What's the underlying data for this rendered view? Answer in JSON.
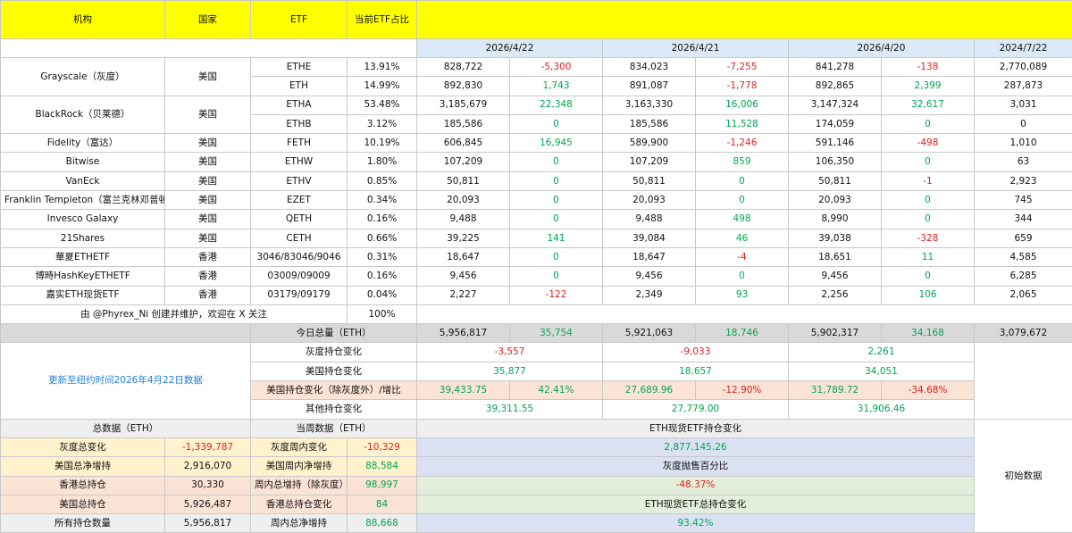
{
  "header": {
    "institution": "机构",
    "country": "国家",
    "etf": "ETF",
    "share": "当前ETF占比",
    "dates": [
      "2026/4/22",
      "2026/4/21",
      "2026/4/20",
      "2024/7/22"
    ]
  },
  "rows": [
    {
      "inst": "Grayscale（灰度）",
      "country": "美国",
      "etf": "ETHE",
      "share": "13.91%",
      "d1": "828,722",
      "c1": "-5,300",
      "d2": "834,023",
      "c2": "-7,255",
      "d3": "841,278",
      "c3": "-138",
      "d4": "2,770,089"
    },
    {
      "etf": "ETH",
      "share": "14.99%",
      "d1": "892,830",
      "c1": "1,743",
      "d2": "891,087",
      "c2": "-1,778",
      "d3": "892,865",
      "c3": "2,399",
      "d4": "287,873"
    },
    {
      "inst": "BlackRock（贝莱德）",
      "country": "美国",
      "etf": "ETHA",
      "share": "53.48%",
      "d1": "3,185,679",
      "c1": "22,348",
      "d2": "3,163,330",
      "c2": "16,006",
      "d3": "3,147,324",
      "c3": "32,617",
      "d4": "3,031"
    },
    {
      "etf": "ETHB",
      "share": "3.12%",
      "d1": "185,586",
      "c1": "0",
      "d2": "185,586",
      "c2": "11,528",
      "d3": "174,059",
      "c3": "0",
      "d4": "0"
    },
    {
      "inst": "Fidelity（富达）",
      "country": "美国",
      "etf": "FETH",
      "share": "10.19%",
      "d1": "606,845",
      "c1": "16,945",
      "d2": "589,900",
      "c2": "-1,246",
      "d3": "591,146",
      "c3": "-498",
      "d4": "1,010"
    },
    {
      "inst": "Bitwise",
      "country": "美国",
      "etf": "ETHW",
      "share": "1.80%",
      "d1": "107,209",
      "c1": "0",
      "d2": "107,209",
      "c2": "859",
      "d3": "106,350",
      "c3": "0",
      "d4": "63"
    },
    {
      "inst": "VanEck",
      "country": "美国",
      "etf": "ETHV",
      "share": "0.85%",
      "d1": "50,811",
      "c1": "0",
      "d2": "50,811",
      "c2": "0",
      "d3": "50,811",
      "c3": "-1",
      "d4": "2,923"
    },
    {
      "inst": "Franklin Templeton（富兰克林邓普顿）",
      "country": "美国",
      "etf": "EZET",
      "share": "0.34%",
      "d1": "20,093",
      "c1": "0",
      "d2": "20,093",
      "c2": "0",
      "d3": "20,093",
      "c3": "0",
      "d4": "745"
    },
    {
      "inst": "Invesco Galaxy",
      "country": "美国",
      "etf": "QETH",
      "share": "0.16%",
      "d1": "9,488",
      "c1": "0",
      "d2": "9,488",
      "c2": "498",
      "d3": "8,990",
      "c3": "0",
      "d4": "344"
    },
    {
      "inst": "21Shares",
      "country": "美国",
      "etf": "CETH",
      "share": "0.66%",
      "d1": "39,225",
      "c1": "141",
      "d2": "39,084",
      "c2": "46",
      "d3": "39,038",
      "c3": "-328",
      "d4": "659"
    },
    {
      "inst": "華夏ETHETF",
      "country": "香港",
      "etf": "3046/83046/9046",
      "share": "0.31%",
      "d1": "18,647",
      "c1": "0",
      "d2": "18,647",
      "c2": "-4",
      "d3": "18,651",
      "c3": "11",
      "d4": "4,585"
    },
    {
      "inst": "博時HashKeyETHETF",
      "country": "香港",
      "etf": "03009/09009",
      "share": "0.16%",
      "d1": "9,456",
      "c1": "0",
      "d2": "9,456",
      "c2": "0",
      "d3": "9,456",
      "c3": "0",
      "d4": "6,285"
    },
    {
      "inst": "嘉实ETH现货ETF",
      "country": "香港",
      "etf": "03179/09179",
      "share": "0.04%",
      "d1": "2,227",
      "c1": "-122",
      "d2": "2,349",
      "c2": "93",
      "d3": "2,256",
      "c3": "106",
      "d4": "2,065"
    }
  ],
  "credit": {
    "text": "由 @Phyrex_Ni 创建并维护，欢迎在 X 关注",
    "share": "100%"
  },
  "total": {
    "label": "今日总量（ETH）",
    "d1": "5,956,817",
    "c1": "35,754",
    "d2": "5,921,063",
    "c2": "18,746",
    "d3": "5,902,317",
    "c3": "34,168",
    "d4": "3,079,672"
  },
  "update_note": "更新至纽约时间2026年4月22日数据",
  "changes": {
    "gray_label": "灰度持仓变化",
    "gray": [
      "-3,557",
      "-9,033",
      "2,261"
    ],
    "us_label": "美国持仓变化",
    "us": [
      "35,877",
      "18,657",
      "34,051"
    ],
    "usx_label": "美国持仓变化（除灰度外）/增比",
    "usx": [
      [
        "39,433.75",
        "42.41%"
      ],
      [
        "27,689.96",
        "-12.90%"
      ],
      [
        "31,789.72",
        "-34.68%"
      ]
    ],
    "other_label": "其他持仓变化",
    "other": [
      "39,311.55",
      "27,779.00",
      "31,906.46"
    ]
  },
  "summary": {
    "total_title": "总数据（ETH）",
    "week_title": "当周数据（ETH）",
    "spot_title": "ETH现货ETF持仓变化",
    "initial_label": "初始数据",
    "rows": [
      {
        "tl": "灰度总变化",
        "tv": "-1,339,787",
        "wl": "灰度周内变化",
        "wv": "-10,329",
        "right": "2,877,145.26"
      },
      {
        "tl": "美国总净增持",
        "tv": "2,916,070",
        "wl": "美国周内净增持",
        "wv": "88,584",
        "right": "灰度抛售百分比"
      },
      {
        "tl": "香港总持仓",
        "tv": "30,330",
        "wl": "周内总增持（除灰度）",
        "wv": "98,997",
        "right": "-48.37%"
      },
      {
        "tl": "美国总持仓",
        "tv": "5,926,487",
        "wl": "香港总持仓变化",
        "wv": "84",
        "right": "ETH现货ETF总持仓变化"
      },
      {
        "tl": "所有持仓数量",
        "tv": "5,956,817",
        "wl": "周内总净增持",
        "wv": "88,668",
        "right": "93.42%"
      }
    ]
  }
}
